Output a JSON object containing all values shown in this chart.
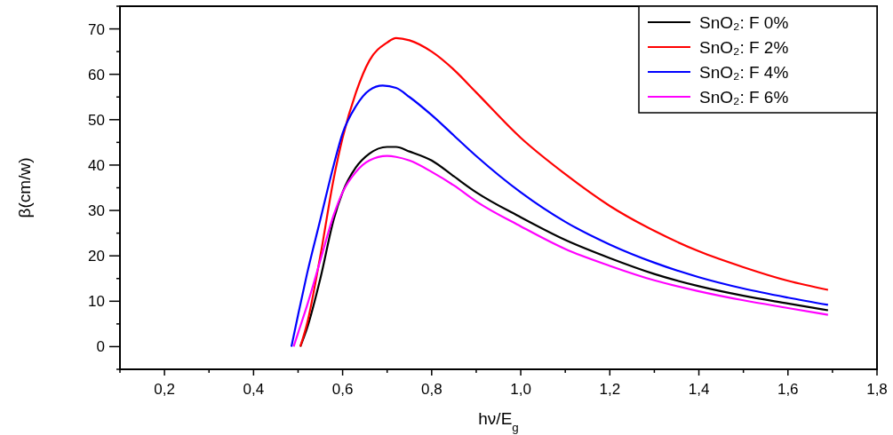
{
  "chart_data": {
    "type": "line",
    "xlabel": "hν/E$_{g}$",
    "ylabel": "β(cm/w)",
    "xlim": [
      0.1,
      1.8
    ],
    "ylim": [
      -5,
      75
    ],
    "xticks": [
      {
        "value": 0.1,
        "label": null
      },
      {
        "value": 0.2,
        "label": "0,2"
      },
      {
        "value": 0.3,
        "label": null
      },
      {
        "value": 0.4,
        "label": "0,4"
      },
      {
        "value": 0.5,
        "label": null
      },
      {
        "value": 0.6,
        "label": "0,6"
      },
      {
        "value": 0.7,
        "label": null
      },
      {
        "value": 0.8,
        "label": "0,8"
      },
      {
        "value": 0.9,
        "label": null
      },
      {
        "value": 1.0,
        "label": "1,0"
      },
      {
        "value": 1.1,
        "label": null
      },
      {
        "value": 1.2,
        "label": "1,2"
      },
      {
        "value": 1.3,
        "label": null
      },
      {
        "value": 1.4,
        "label": "1,4"
      },
      {
        "value": 1.5,
        "label": null
      },
      {
        "value": 1.6,
        "label": "1,6"
      },
      {
        "value": 1.7,
        "label": null
      },
      {
        "value": 1.8,
        "label": "1,8"
      }
    ],
    "yticks": [
      {
        "value": -5,
        "label": null
      },
      0,
      {
        "value": 5,
        "label": null
      },
      10,
      {
        "value": 15,
        "label": null
      },
      20,
      {
        "value": 25,
        "label": null
      },
      30,
      {
        "value": 35,
        "label": null
      },
      40,
      {
        "value": 45,
        "label": null
      },
      50,
      {
        "value": 55,
        "label": null
      },
      60,
      {
        "value": 65,
        "label": null
      },
      70,
      {
        "value": 75,
        "label": null
      }
    ],
    "grid": false,
    "legend": "top right",
    "marker": "none",
    "line_style": "solid",
    "series": [
      {
        "name": "SnO₂: F 0%",
        "color": "#000000",
        "x": [
          0.505,
          0.52,
          0.55,
          0.58,
          0.6,
          0.63,
          0.66,
          0.7,
          0.72,
          0.75,
          0.8,
          0.85,
          0.9,
          1.0,
          1.1,
          1.2,
          1.3,
          1.4,
          1.5,
          1.6,
          1.69
        ],
        "values": [
          0,
          4,
          15,
          28,
          34,
          39.5,
          42.5,
          44,
          44,
          43,
          41,
          37.5,
          34,
          28.5,
          23.5,
          19.5,
          16,
          13.3,
          11.2,
          9.5,
          8
        ]
      },
      {
        "name": "SnO₂: F 2%",
        "color": "#ff0000",
        "x": [
          0.505,
          0.52,
          0.55,
          0.58,
          0.6,
          0.63,
          0.66,
          0.7,
          0.72,
          0.75,
          0.8,
          0.85,
          0.9,
          1.0,
          1.1,
          1.2,
          1.3,
          1.4,
          1.5,
          1.6,
          1.69
        ],
        "values": [
          0,
          5,
          20,
          37,
          46,
          56,
          63,
          67,
          68,
          67.5,
          65,
          61,
          56,
          46,
          38,
          31,
          25.5,
          21,
          17.5,
          14.5,
          12.5
        ]
      },
      {
        "name": "SnO₂: F 4%",
        "color": "#0000ff",
        "x": [
          0.485,
          0.5,
          0.52,
          0.55,
          0.58,
          0.6,
          0.63,
          0.66,
          0.69,
          0.72,
          0.75,
          0.8,
          0.85,
          0.9,
          1.0,
          1.1,
          1.2,
          1.3,
          1.4,
          1.5,
          1.6,
          1.69
        ],
        "values": [
          0,
          7,
          16,
          28,
          40,
          47,
          53,
          56.5,
          57.5,
          57,
          55,
          51,
          46.5,
          42,
          34,
          27.5,
          22.5,
          18.5,
          15.3,
          12.8,
          10.8,
          9.2
        ]
      },
      {
        "name": "SnO₂: F 6%",
        "color": "#ff00ff",
        "x": [
          0.49,
          0.5,
          0.52,
          0.55,
          0.58,
          0.6,
          0.63,
          0.66,
          0.7,
          0.72,
          0.75,
          0.8,
          0.85,
          0.9,
          1.0,
          1.1,
          1.2,
          1.3,
          1.4,
          1.5,
          1.6,
          1.69
        ],
        "values": [
          0,
          3,
          9,
          19,
          29,
          34,
          38.5,
          41,
          42,
          41.8,
          41,
          38.5,
          35.5,
          32,
          26.5,
          21.5,
          17.8,
          14.6,
          12.2,
          10.2,
          8.5,
          7
        ]
      }
    ]
  }
}
